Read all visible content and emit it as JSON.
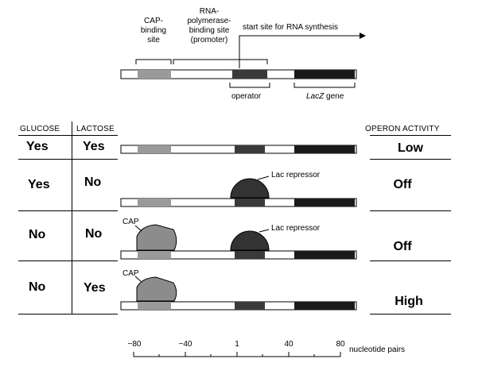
{
  "top_labels": {
    "cap_binding_site": [
      "CAP-",
      "binding",
      "site"
    ],
    "rna_polymerase_site": [
      "RNA-",
      "polymerase-",
      "binding site",
      "(promoter)"
    ],
    "start_site": "start site for RNA synthesis",
    "operator": "operator",
    "lacz": "LacZ",
    "gene": " gene"
  },
  "headers": {
    "glucose": "GLUCOSE",
    "lactose": "LACTOSE",
    "operon_activity": "OPERON ACTIVITY"
  },
  "rows": [
    {
      "glucose": "Yes",
      "lactose": "Yes",
      "activity": "Low"
    },
    {
      "glucose": "Yes",
      "lactose": "No",
      "activity": "Off"
    },
    {
      "glucose": "No",
      "lactose": "No",
      "activity": "Off"
    },
    {
      "glucose": "No",
      "lactose": "Yes",
      "activity": "High"
    }
  ],
  "annotations": {
    "lac_repressor_1": "Lac repressor",
    "lac_repressor_2": "Lac repressor",
    "cap_1": "CAP",
    "cap_2": "CAP"
  },
  "axis": {
    "ticks": [
      "−80",
      "−40",
      "1",
      "40",
      "80"
    ],
    "unit": "nucleotide pairs"
  },
  "colors": {
    "cap_site": "#9a9a9a",
    "operator": "#3a3a3a",
    "lacz": "#1a1a1a",
    "cap_protein": "#8c8c8c",
    "repressor": "#333333"
  }
}
